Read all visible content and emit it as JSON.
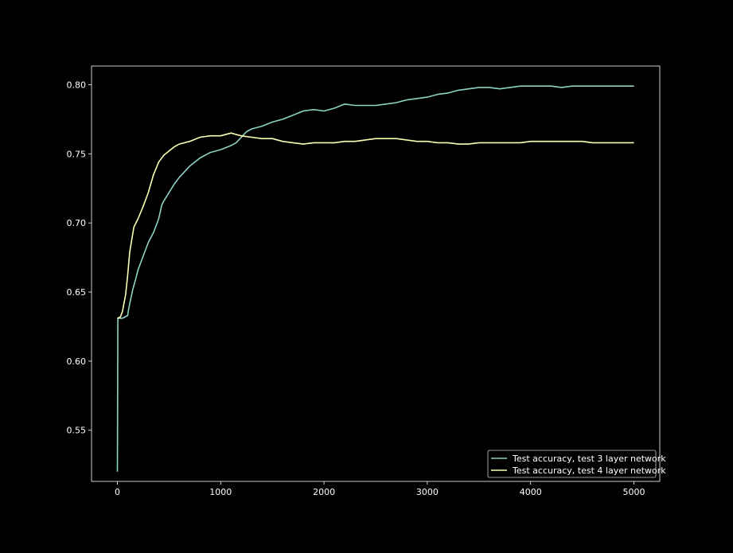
{
  "colors": {
    "background": "#000000",
    "axes": "#ffffff",
    "series_1": "#8dd3c7",
    "series_2": "#feffb3"
  },
  "chart_data": {
    "type": "line",
    "title": "",
    "xlabel": "",
    "ylabel": "",
    "xlim": [
      -250,
      5250
    ],
    "ylim": [
      0.513,
      0.8135
    ],
    "xticks": [
      0,
      1000,
      2000,
      3000,
      4000,
      5000
    ],
    "xtick_labels": [
      "0",
      "1000",
      "2000",
      "3000",
      "4000",
      "5000"
    ],
    "yticks": [
      0.55,
      0.6,
      0.65,
      0.7,
      0.75,
      0.8
    ],
    "ytick_labels": [
      "0.55",
      "0.60",
      "0.65",
      "0.70",
      "0.75",
      "0.80"
    ],
    "grid": false,
    "legend_position": "lower-right",
    "series": [
      {
        "name": "Test accuracy, test 3 layer network",
        "color": "#8dd3c7",
        "x": [
          0,
          5,
          10,
          50,
          100,
          110,
          130,
          150,
          180,
          200,
          250,
          300,
          350,
          400,
          430,
          450,
          500,
          550,
          600,
          700,
          800,
          900,
          1000,
          1100,
          1150,
          1200,
          1250,
          1300,
          1400,
          1500,
          1600,
          1700,
          1800,
          1900,
          2000,
          2100,
          2200,
          2300,
          2400,
          2500,
          2600,
          2700,
          2800,
          2900,
          3000,
          3100,
          3200,
          3300,
          3400,
          3500,
          3600,
          3700,
          3800,
          3900,
          4000,
          4100,
          4200,
          4300,
          4400,
          4500,
          4600,
          4700,
          4800,
          4900,
          5000
        ],
        "y": [
          0.52,
          0.631,
          0.631,
          0.631,
          0.633,
          0.638,
          0.645,
          0.652,
          0.66,
          0.666,
          0.676,
          0.686,
          0.693,
          0.703,
          0.713,
          0.716,
          0.722,
          0.728,
          0.733,
          0.741,
          0.747,
          0.751,
          0.753,
          0.756,
          0.758,
          0.762,
          0.766,
          0.768,
          0.77,
          0.773,
          0.775,
          0.778,
          0.781,
          0.782,
          0.781,
          0.783,
          0.786,
          0.785,
          0.785,
          0.785,
          0.786,
          0.787,
          0.789,
          0.79,
          0.791,
          0.793,
          0.794,
          0.796,
          0.797,
          0.798,
          0.798,
          0.797,
          0.798,
          0.799,
          0.799,
          0.799,
          0.799,
          0.798,
          0.799,
          0.799,
          0.799,
          0.799,
          0.799,
          0.799,
          0.799
        ]
      },
      {
        "name": "Test accuracy, test 4 layer network",
        "color": "#feffb3",
        "x": [
          0,
          30,
          50,
          80,
          100,
          120,
          140,
          160,
          200,
          250,
          300,
          350,
          400,
          450,
          500,
          550,
          600,
          700,
          800,
          900,
          1000,
          1100,
          1150,
          1200,
          1300,
          1400,
          1500,
          1600,
          1700,
          1800,
          1900,
          2000,
          2100,
          2200,
          2300,
          2400,
          2500,
          2600,
          2700,
          2800,
          2900,
          3000,
          3100,
          3200,
          3300,
          3400,
          3500,
          3600,
          3700,
          3800,
          3900,
          4000,
          4100,
          4200,
          4300,
          4400,
          4500,
          4600,
          4700,
          4800,
          4900,
          5000
        ],
        "y": [
          0.631,
          0.632,
          0.636,
          0.648,
          0.662,
          0.679,
          0.688,
          0.697,
          0.703,
          0.712,
          0.722,
          0.735,
          0.744,
          0.749,
          0.752,
          0.755,
          0.757,
          0.759,
          0.762,
          0.763,
          0.763,
          0.765,
          0.764,
          0.763,
          0.762,
          0.761,
          0.761,
          0.759,
          0.758,
          0.757,
          0.758,
          0.758,
          0.758,
          0.759,
          0.759,
          0.76,
          0.761,
          0.761,
          0.761,
          0.76,
          0.759,
          0.759,
          0.758,
          0.758,
          0.757,
          0.757,
          0.758,
          0.758,
          0.758,
          0.758,
          0.758,
          0.759,
          0.759,
          0.759,
          0.759,
          0.759,
          0.759,
          0.758,
          0.758,
          0.758,
          0.758,
          0.758
        ]
      }
    ]
  }
}
